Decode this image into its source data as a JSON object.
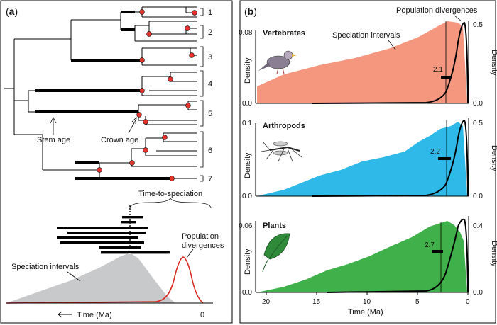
{
  "panel_a": {
    "label_open": "(",
    "label_letter": "a",
    "label_close": ")",
    "clade_numbers": [
      "1",
      "2",
      "3",
      "4",
      "5",
      "6",
      "7"
    ],
    "stem_age_label": "Stem age",
    "crown_age_label": "Crown age",
    "time_to_speciation_label": "Time-to-speciation",
    "population_divergences_label_line1": "Population",
    "population_divergences_label_line2": "divergences",
    "speciation_intervals_label": "Speciation intervals",
    "x_axis_label": "Time (Ma)",
    "x_zero_label": "0",
    "colors": {
      "tree": "#000000",
      "node": "#e8322c",
      "distribution": "#c8c9cb",
      "population_curve": "#d9281e"
    }
  },
  "panel_b": {
    "label_open": "(",
    "label_letter": "b",
    "label_close": ")",
    "population_divergences_label": "Population divergences",
    "speciation_intervals_label": "Speciation intervals",
    "x_axis_label": "Time (Ma)",
    "x_ticks": [
      "20",
      "15",
      "10",
      "5",
      "0"
    ],
    "y_label_left": "Density",
    "y_label_right": "Density",
    "panels": [
      {
        "title": "Vertebrates",
        "left_ticks": [
          "0.08",
          "0.0"
        ],
        "right_ticks": [
          "0.5",
          "0.0"
        ],
        "median_label": "2.1",
        "color": "#f4977e",
        "icon": "bird-icon"
      },
      {
        "title": "Arthropods",
        "left_ticks": [
          "0.1",
          "0.0"
        ],
        "right_ticks": [
          "0.5",
          "0.0"
        ],
        "median_label": "2.2",
        "color": "#2fb9e8",
        "icon": "mosquito-icon"
      },
      {
        "title": "Plants",
        "left_ticks": [
          "0.06",
          "0.0"
        ],
        "right_ticks": [
          "0.4",
          "0.0"
        ],
        "median_label": "2.7",
        "color": "#40b04a",
        "icon": "leaf-icon"
      }
    ]
  }
}
